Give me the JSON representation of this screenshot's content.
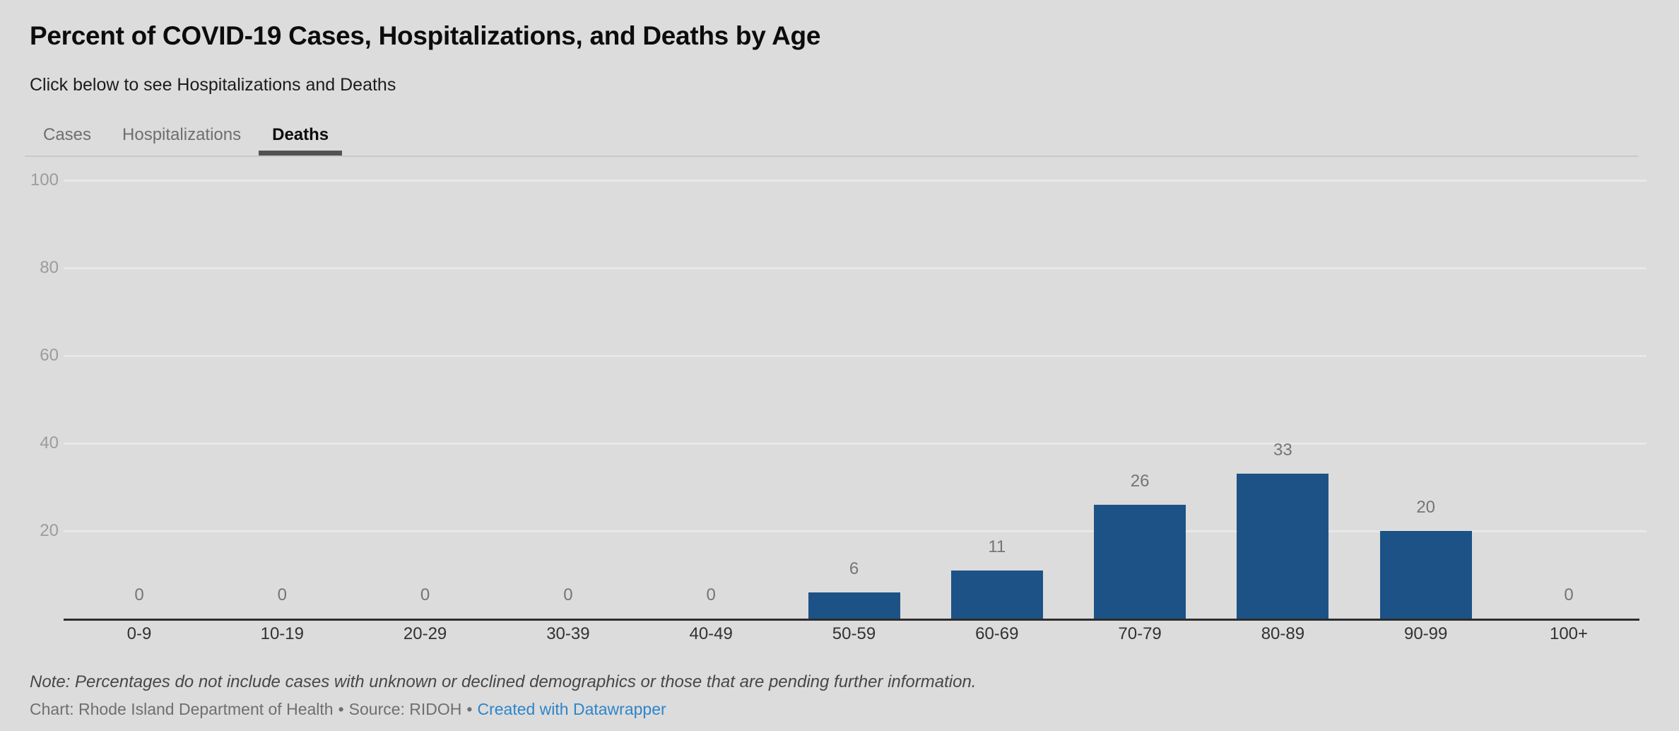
{
  "header": {
    "title": "Percent of COVID-19 Cases, Hospitalizations, and Deaths by Age",
    "subtitle": "Click below to see Hospitalizations and Deaths"
  },
  "tabs": [
    {
      "label": "Cases",
      "active": false
    },
    {
      "label": "Hospitalizations",
      "active": false
    },
    {
      "label": "Deaths",
      "active": true
    }
  ],
  "chart_data": {
    "type": "bar",
    "title": "Percent of COVID-19 Cases, Hospitalizations, and Deaths by Age",
    "active_series": "Deaths",
    "categories": [
      "0-9",
      "10-19",
      "20-29",
      "30-39",
      "40-49",
      "50-59",
      "60-69",
      "70-79",
      "80-89",
      "90-99",
      "100+"
    ],
    "values": [
      0,
      0,
      0,
      0,
      0,
      6,
      11,
      26,
      33,
      20,
      0
    ],
    "xlabel": "",
    "ylabel": "",
    "ylim": [
      0,
      100
    ],
    "yticks": [
      20,
      40,
      60,
      80,
      100
    ],
    "grid": true,
    "legend_position": "none",
    "value_labels": true,
    "bar_color": "#1d5286"
  },
  "footer": {
    "note": "Note: Percentages do not include cases with unknown or declined demographics or those that are pending further information.",
    "chart_credit": "Chart: Rhode Island Department of Health",
    "separator": "•",
    "source_credit": "Source: RIDOH",
    "link_label": "Created with Datawrapper",
    "link_color": "#2e85ca"
  },
  "colors": {
    "background": "#dcdcdc",
    "gridline": "#e8e8e8",
    "axis_line": "#2d2d2d",
    "tab_underline": "#535353"
  }
}
